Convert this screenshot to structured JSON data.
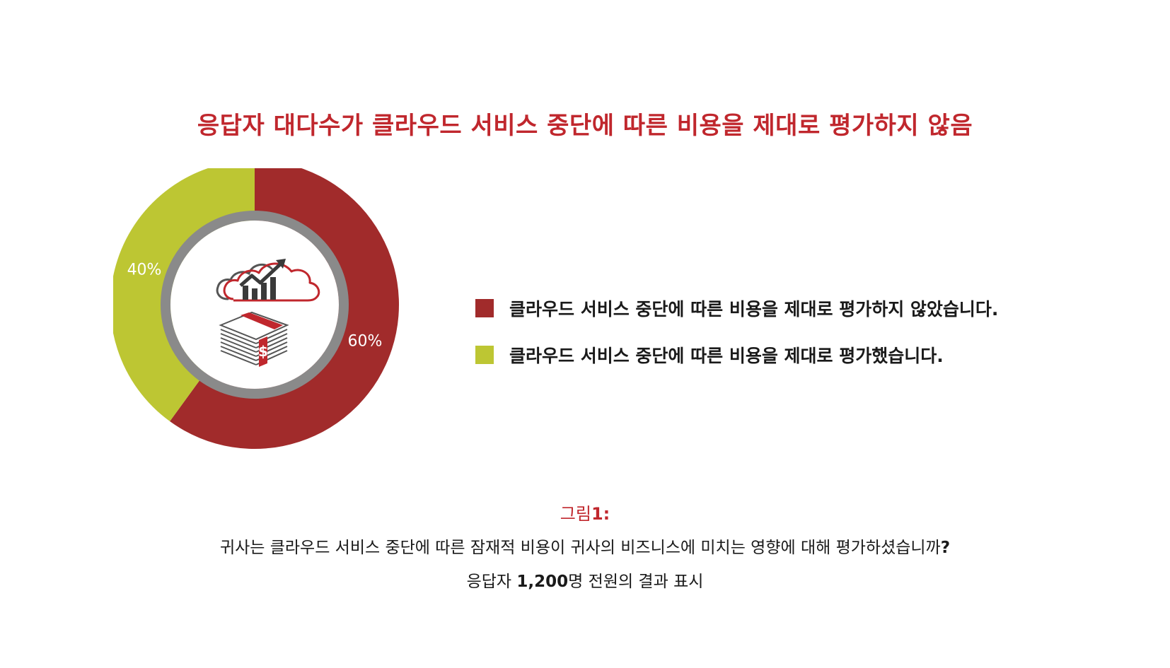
{
  "title": "응답자 대다수가 클라우드 서비스 중단에 따른 비용을 제대로 평가하지 않음",
  "colors": {
    "title": "#c0272d",
    "not_evaluated": "#a12b2b",
    "evaluated": "#bdc633",
    "inner_ring": "#8a8a8a"
  },
  "chart_data": {
    "type": "pie",
    "style": "donut",
    "slices": [
      {
        "label": "클라우드 서비스 중단에 따른 비용을 제대로 평가하지 않았습니다.",
        "value": 60,
        "display": "60%",
        "color": "#a12b2b"
      },
      {
        "label": "클라우드 서비스 중단에 따른 비용을 제대로 평가했습니다.",
        "value": 40,
        "display": "40%",
        "color": "#bdc633"
      }
    ],
    "center_icons": [
      "cloud-chart-icon",
      "money-stack-icon"
    ],
    "legend_position": "right"
  },
  "legend": [
    {
      "label": "클라우드 서비스 중단에 따른 비용을 제대로 평가하지 않았습니다.",
      "color": "#a12b2b"
    },
    {
      "label": "클라우드 서비스 중단에 따른 비용을 제대로 평가했습니다.",
      "color": "#bdc633"
    }
  ],
  "caption": {
    "figure_prefix": "그림",
    "figure_number": "1:",
    "question_text": "귀사는 클라우드 서비스 중단에 따른 잠재적 비용이 귀사의 비즈니스에 미치는 영향에 대해 평가하셨습니까",
    "question_mark": "?",
    "respondents_prefix": "응답자 ",
    "respondents_count": "1,200",
    "respondents_suffix": "명 전원의 결과 표시"
  }
}
